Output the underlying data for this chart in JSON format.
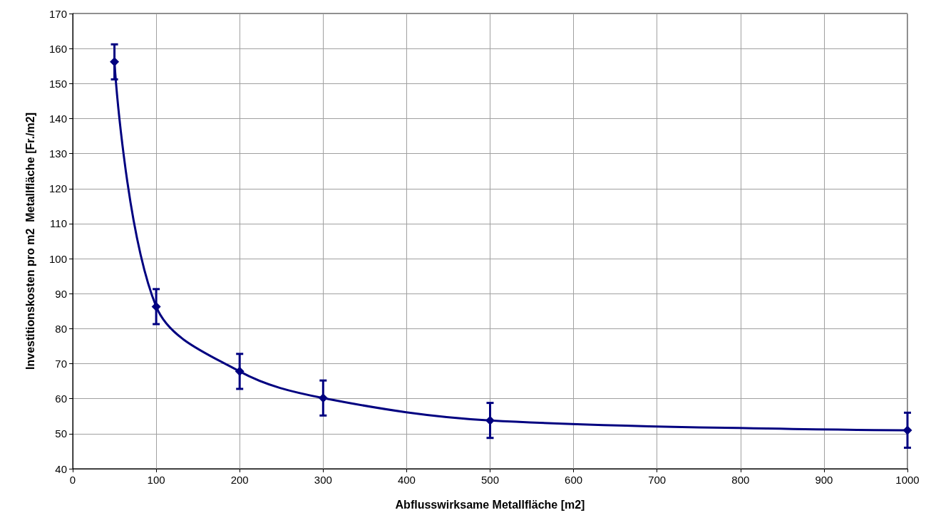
{
  "chart_data": {
    "type": "line",
    "xlabel": "Abflusswirksame Metallfläche [m2]",
    "ylabel": "Investitionskosten pro m2  Metallfläche [Fr./m2]",
    "x": [
      50,
      100,
      200,
      300,
      500,
      1000
    ],
    "series": [
      {
        "color": "#000080",
        "values": [
          156.2,
          86.3,
          67.8,
          60.2,
          53.8,
          51.0
        ],
        "errors": [
          5,
          5,
          5,
          5,
          5,
          5
        ]
      }
    ],
    "xlim": [
      0,
      1000
    ],
    "xticks": [
      0,
      100,
      200,
      300,
      400,
      500,
      600,
      700,
      800,
      900,
      1000
    ],
    "ylim": [
      40,
      170
    ],
    "yticks": [
      40,
      50,
      60,
      70,
      80,
      90,
      100,
      110,
      120,
      130,
      140,
      150,
      160,
      170
    ],
    "grid": true,
    "marker": "diamond",
    "line_style": "solid"
  }
}
